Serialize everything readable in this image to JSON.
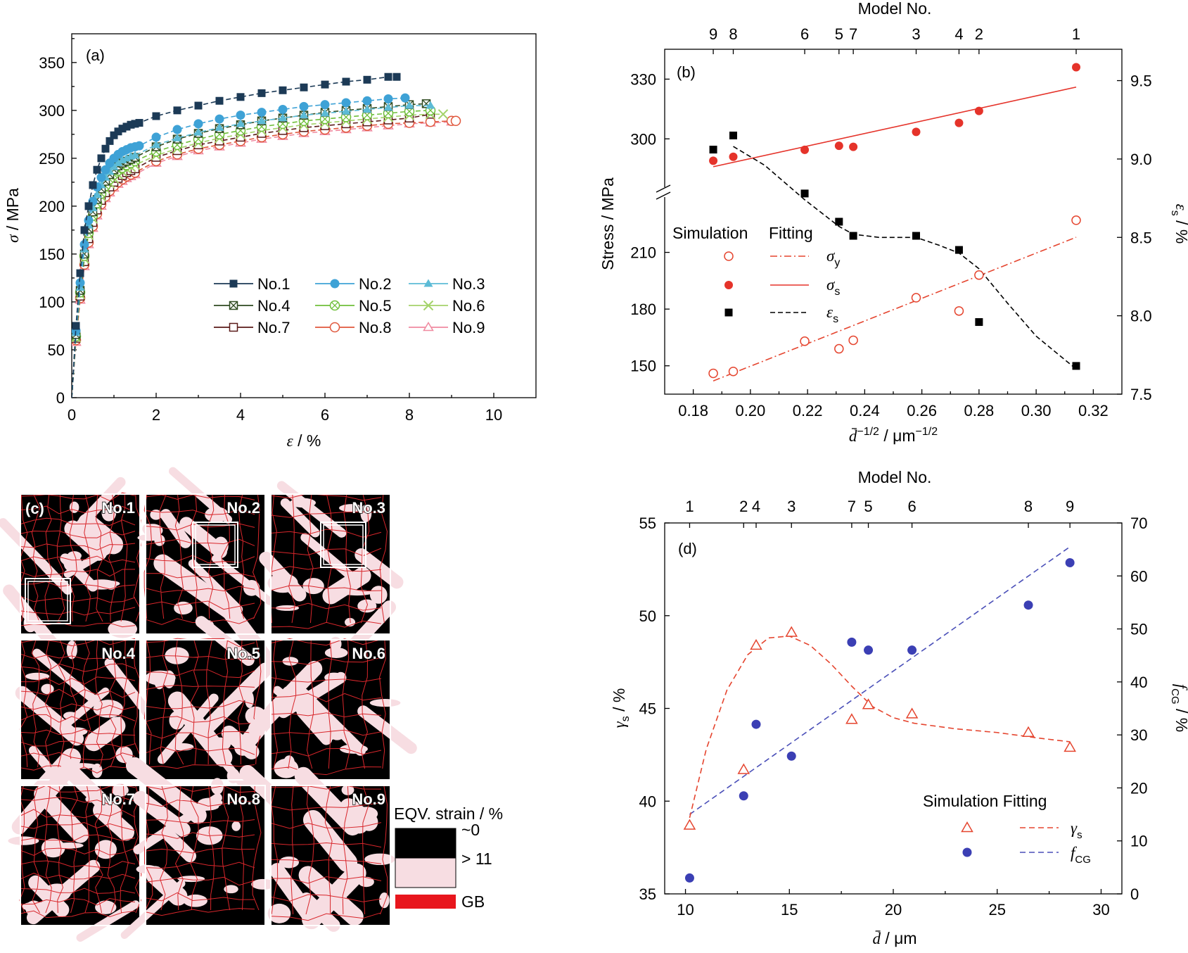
{
  "chart_data": [
    {
      "panel": "(a)",
      "type": "line",
      "xlabel": "ε / %",
      "ylabel": "σ / MPa",
      "xlim": [
        0,
        11
      ],
      "ylim": [
        0,
        380
      ],
      "xticks": [
        0,
        2,
        4,
        6,
        8,
        10
      ],
      "yticks": [
        0,
        50,
        100,
        150,
        200,
        250,
        300,
        350
      ],
      "legend_position": "lower-right",
      "series": [
        {
          "name": "No.1",
          "color": "#1c3a56",
          "marker": "square-filled",
          "x": [
            0,
            0.1,
            0.2,
            0.3,
            0.4,
            0.5,
            0.6,
            0.7,
            0.8,
            0.9,
            1.0,
            1.1,
            1.2,
            1.3,
            1.4,
            1.5,
            1.6,
            2.0,
            2.5,
            3.0,
            3.5,
            4.0,
            4.5,
            5.0,
            5.5,
            6.0,
            6.5,
            7.0,
            7.5,
            7.7
          ],
          "y": [
            0,
            75,
            130,
            175,
            200,
            222,
            238,
            250,
            260,
            268,
            274,
            278,
            281,
            283,
            285,
            286,
            287,
            294,
            300,
            305,
            310,
            314,
            318,
            321,
            324,
            327,
            330,
            332,
            335,
            335
          ]
        },
        {
          "name": "No.2",
          "color": "#3ea2d6",
          "marker": "circle-filled",
          "x": [
            0,
            0.1,
            0.2,
            0.3,
            0.4,
            0.5,
            0.6,
            0.7,
            0.8,
            0.9,
            1.0,
            1.1,
            1.2,
            1.3,
            1.4,
            1.5,
            1.6,
            2.0,
            2.5,
            3.0,
            3.5,
            4.0,
            4.5,
            5.0,
            5.5,
            6.0,
            6.5,
            7.0,
            7.5,
            7.9
          ],
          "y": [
            0,
            70,
            120,
            160,
            185,
            205,
            220,
            230,
            238,
            245,
            250,
            254,
            257,
            259,
            261,
            262,
            263,
            272,
            280,
            286,
            291,
            295,
            298,
            301,
            304,
            306,
            308,
            310,
            312,
            313
          ]
        },
        {
          "name": "No.3",
          "color": "#5cbbd6",
          "marker": "triangle-filled",
          "x": [
            0,
            0.1,
            0.2,
            0.3,
            0.4,
            0.5,
            0.6,
            0.7,
            0.8,
            0.9,
            1.0,
            1.1,
            1.2,
            1.3,
            1.4,
            1.5,
            2.0,
            2.5,
            3.0,
            3.5,
            4.0,
            4.5,
            5.0,
            5.5,
            6.0,
            6.5,
            7.0,
            7.5,
            8.0,
            8.5
          ],
          "y": [
            0,
            68,
            115,
            155,
            180,
            198,
            212,
            222,
            230,
            236,
            241,
            245,
            248,
            250,
            252,
            253,
            264,
            271,
            277,
            282,
            286,
            289,
            292,
            295,
            297,
            299,
            301,
            303,
            305,
            305
          ]
        },
        {
          "name": "No.4",
          "color": "#2e4a20",
          "marker": "square-crossed",
          "x": [
            0,
            0.1,
            0.2,
            0.3,
            0.4,
            0.5,
            0.6,
            0.7,
            0.8,
            0.9,
            1.0,
            1.1,
            1.2,
            1.3,
            1.4,
            1.5,
            2.0,
            2.5,
            3.0,
            3.5,
            4.0,
            4.5,
            5.0,
            5.5,
            6.0,
            6.5,
            7.0,
            7.5,
            8.0,
            8.4
          ],
          "y": [
            0,
            66,
            112,
            150,
            176,
            194,
            207,
            218,
            226,
            233,
            238,
            242,
            245,
            247,
            249,
            251,
            262,
            270,
            276,
            281,
            285,
            289,
            292,
            295,
            298,
            300,
            302,
            304,
            306,
            307
          ]
        },
        {
          "name": "No.5",
          "color": "#6fbf3a",
          "marker": "circle-crossed",
          "x": [
            0,
            0.1,
            0.2,
            0.3,
            0.4,
            0.5,
            0.6,
            0.7,
            0.8,
            0.9,
            1.0,
            1.1,
            1.2,
            1.3,
            1.4,
            1.5,
            2.0,
            2.5,
            3.0,
            3.5,
            4.0,
            4.5,
            5.0,
            5.5,
            6.0,
            6.5,
            7.0,
            7.5,
            8.0,
            8.5
          ],
          "y": [
            0,
            64,
            110,
            148,
            172,
            190,
            203,
            213,
            221,
            228,
            233,
            237,
            240,
            243,
            245,
            247,
            257,
            264,
            270,
            275,
            279,
            283,
            286,
            289,
            291,
            293,
            295,
            297,
            299,
            300
          ]
        },
        {
          "name": "No.6",
          "color": "#a4d36a",
          "marker": "x-cross",
          "x": [
            0,
            0.1,
            0.2,
            0.3,
            0.4,
            0.5,
            0.6,
            0.7,
            0.8,
            0.9,
            1.0,
            1.1,
            1.2,
            1.3,
            1.4,
            1.5,
            2.0,
            2.5,
            3.0,
            3.5,
            4.0,
            4.5,
            5.0,
            5.5,
            6.0,
            6.5,
            7.0,
            7.5,
            8.0,
            8.5,
            8.8
          ],
          "y": [
            0,
            63,
            108,
            145,
            170,
            187,
            200,
            210,
            218,
            224,
            229,
            233,
            236,
            239,
            241,
            243,
            253,
            260,
            266,
            271,
            275,
            279,
            282,
            285,
            287,
            289,
            291,
            293,
            295,
            296,
            296
          ]
        },
        {
          "name": "No.7",
          "color": "#5a1a18",
          "marker": "square-open",
          "x": [
            0,
            0.1,
            0.2,
            0.3,
            0.4,
            0.5,
            0.6,
            0.7,
            0.8,
            0.9,
            1.0,
            1.1,
            1.2,
            1.3,
            1.4,
            1.5,
            2.0,
            2.5,
            3.0,
            3.5,
            4.0,
            4.5,
            5.0,
            5.5,
            6.0,
            6.5,
            7.0,
            7.5,
            8.0,
            8.5
          ],
          "y": [
            0,
            62,
            106,
            142,
            166,
            183,
            196,
            206,
            214,
            220,
            225,
            229,
            232,
            235,
            237,
            239,
            251,
            258,
            264,
            268,
            272,
            276,
            279,
            282,
            284,
            286,
            288,
            290,
            292,
            296
          ]
        },
        {
          "name": "No.8",
          "color": "#e0573c",
          "marker": "circle-open",
          "x": [
            0,
            0.1,
            0.2,
            0.3,
            0.4,
            0.5,
            0.6,
            0.7,
            0.8,
            0.9,
            1.0,
            1.1,
            1.2,
            1.3,
            1.4,
            1.5,
            2.0,
            2.5,
            3.0,
            3.5,
            4.0,
            4.5,
            5.0,
            5.5,
            6.0,
            6.5,
            7.0,
            7.5,
            8.0,
            8.5,
            9.0,
            9.1
          ],
          "y": [
            0,
            60,
            104,
            139,
            162,
            179,
            192,
            202,
            210,
            216,
            221,
            225,
            228,
            231,
            233,
            235,
            247,
            254,
            260,
            264,
            268,
            272,
            275,
            278,
            280,
            282,
            284,
            286,
            287,
            288,
            289,
            289
          ]
        },
        {
          "name": "No.9",
          "color": "#f08aa0",
          "marker": "triangle-open",
          "x": [
            0,
            0.1,
            0.2,
            0.3,
            0.4,
            0.5,
            0.6,
            0.7,
            0.8,
            0.9,
            1.0,
            1.1,
            1.2,
            1.3,
            1.4,
            1.5,
            2.0,
            2.5,
            3.0,
            3.5,
            4.0,
            4.5,
            5.0,
            5.5,
            6.0,
            6.5,
            7.0,
            7.5,
            8.0,
            8.5,
            9.0
          ],
          "y": [
            0,
            58,
            102,
            137,
            160,
            177,
            190,
            200,
            208,
            214,
            219,
            223,
            226,
            229,
            231,
            233,
            245,
            252,
            258,
            262,
            266,
            270,
            273,
            276,
            278,
            280,
            282,
            284,
            286,
            287,
            288
          ]
        }
      ]
    },
    {
      "panel": "(b)",
      "type": "scatter",
      "xlabel": "d̄ −1/2 / μm−1/2",
      "ylabel_left": "Stress / MPa",
      "ylabel_right": "εs / %",
      "top_axis_label": "Model No.",
      "top_ticks": [
        {
          "label": "9",
          "x": 0.187
        },
        {
          "label": "8",
          "x": 0.194
        },
        {
          "label": "6",
          "x": 0.219
        },
        {
          "label": "5",
          "x": 0.231
        },
        {
          "label": "7",
          "x": 0.236
        },
        {
          "label": "3",
          "x": 0.258
        },
        {
          "label": "4",
          "x": 0.273
        },
        {
          "label": "2",
          "x": 0.28
        },
        {
          "label": "1",
          "x": 0.314
        }
      ],
      "xlim": [
        0.17,
        0.33
      ],
      "xticks": [
        0.18,
        0.2,
        0.22,
        0.24,
        0.26,
        0.28,
        0.3,
        0.32
      ],
      "ylim_upper_segment": [
        275,
        345
      ],
      "ylim_lower_segment": [
        135,
        240
      ],
      "yticks_left": [
        150,
        180,
        210,
        300,
        330
      ],
      "ylim_right": [
        7.5,
        9.7
      ],
      "yticks_right": [
        7.5,
        8.0,
        8.5,
        9.0,
        9.5
      ],
      "legend": {
        "header_sim": "Simulation",
        "header_fit": "Fitting",
        "items": [
          "σy",
          "σs",
          "εs"
        ]
      },
      "sigma_y_sim": {
        "x": [
          0.187,
          0.194,
          0.219,
          0.231,
          0.236,
          0.258,
          0.273,
          0.28,
          0.314
        ],
        "y": [
          146,
          147,
          163,
          159,
          163.5,
          186,
          179,
          198,
          227
        ],
        "color": "#e5452f"
      },
      "sigma_y_fit": {
        "x": [
          0.187,
          0.314
        ],
        "y": [
          142,
          218
        ]
      },
      "sigma_s_sim": {
        "x": [
          0.187,
          0.194,
          0.219,
          0.231,
          0.236,
          0.258,
          0.273,
          0.28,
          0.314
        ],
        "y": [
          289,
          291,
          294.5,
          296.5,
          296,
          303.5,
          308,
          314,
          336
        ],
        "color": "#e5332a"
      },
      "sigma_s_fit": {
        "x": [
          0.187,
          0.314
        ],
        "y": [
          286,
          326
        ]
      },
      "eps_s_sim": {
        "x": [
          0.187,
          0.194,
          0.219,
          0.231,
          0.236,
          0.258,
          0.273,
          0.28,
          0.314
        ],
        "y": [
          9.06,
          9.15,
          8.78,
          8.6,
          8.51,
          8.51,
          8.42,
          7.96,
          7.68
        ],
        "color": "#000000"
      },
      "eps_s_fit": {
        "x": [
          0.194,
          0.205,
          0.219,
          0.231,
          0.236,
          0.245,
          0.258,
          0.266,
          0.273,
          0.28,
          0.29,
          0.3,
          0.314
        ],
        "y": [
          9.08,
          8.96,
          8.74,
          8.57,
          8.52,
          8.5,
          8.5,
          8.45,
          8.4,
          8.3,
          8.08,
          7.87,
          7.66
        ]
      }
    },
    {
      "panel": "(d)",
      "type": "scatter",
      "xlabel": "d̄ / μm",
      "ylabel_left": "γs / %",
      "ylabel_right": "fCG / %",
      "top_axis_label": "Model No.",
      "top_ticks": [
        {
          "label": "1",
          "x": 10.2
        },
        {
          "label": "2",
          "x": 12.8
        },
        {
          "label": "4",
          "x": 13.4
        },
        {
          "label": "3",
          "x": 15.1
        },
        {
          "label": "7",
          "x": 18.0
        },
        {
          "label": "5",
          "x": 18.8
        },
        {
          "label": "6",
          "x": 20.9
        },
        {
          "label": "8",
          "x": 26.5
        },
        {
          "label": "9",
          "x": 28.5
        }
      ],
      "xlim": [
        9,
        31
      ],
      "xticks": [
        10,
        15,
        20,
        25,
        30
      ],
      "ylim_left": [
        35,
        55
      ],
      "yticks_left": [
        35,
        40,
        45,
        50,
        55
      ],
      "ylim_right": [
        0,
        70
      ],
      "yticks_right": [
        0,
        10,
        20,
        30,
        40,
        50,
        60,
        70
      ],
      "legend": {
        "header": "Simulation Fitting",
        "items": [
          "γs",
          "fCG"
        ]
      },
      "gamma_s_sim": {
        "x": [
          10.2,
          12.8,
          13.4,
          15.1,
          18.0,
          18.8,
          20.9,
          26.5,
          28.5
        ],
        "y": [
          38.7,
          41.7,
          48.4,
          49.1,
          44.4,
          45.2,
          44.7,
          43.7,
          42.9
        ],
        "color": "#e5452f"
      },
      "gamma_s_fit": {
        "x": [
          10.2,
          11.0,
          12.0,
          13.0,
          14.0,
          15.0,
          16.0,
          17.0,
          18.0,
          19.0,
          20.0,
          21.0,
          23.0,
          25.0,
          27.0,
          28.5
        ],
        "y": [
          39.1,
          42.8,
          46.0,
          47.9,
          48.8,
          48.9,
          48.4,
          47.4,
          46.2,
          45.1,
          44.5,
          44.2,
          43.9,
          43.7,
          43.4,
          43.2
        ]
      },
      "f_cg_sim": {
        "x": [
          10.2,
          12.8,
          13.4,
          15.1,
          18.0,
          18.8,
          20.9,
          26.5,
          28.5
        ],
        "y": [
          3,
          18.5,
          32,
          26,
          47.5,
          46,
          46,
          54.5,
          62.5
        ],
        "color": "#3b3fb4"
      },
      "f_cg_fit": {
        "x": [
          10.2,
          28.5
        ],
        "y": [
          15,
          65.5
        ]
      }
    },
    {
      "panel": "(c)",
      "type": "heatmap",
      "maps": [
        "No.1",
        "No.2",
        "No.3",
        "No.4",
        "No.5",
        "No.6",
        "No.7",
        "No.8",
        "No.9"
      ],
      "legend_title": "EQV. strain / %",
      "legend_items": [
        {
          "label": "~0",
          "color": "#000000"
        },
        {
          "label": "> 11",
          "color": "#f7dde2"
        },
        {
          "label": "GB",
          "color": "#e8161d"
        }
      ]
    }
  ]
}
